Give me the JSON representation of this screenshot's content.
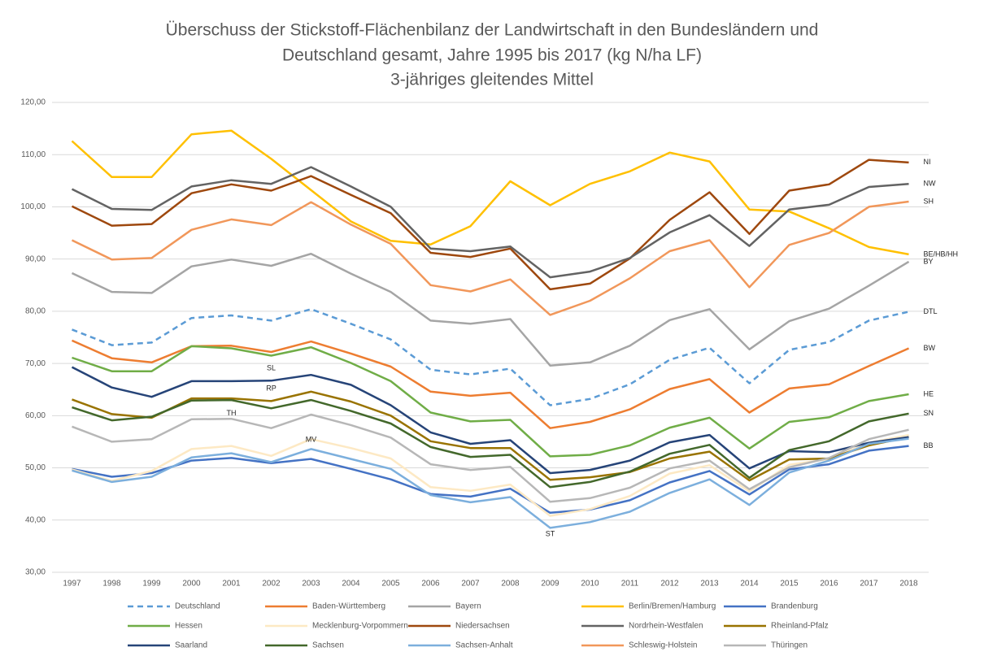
{
  "chart_data": {
    "type": "line",
    "title": [
      "Überschuss der Stickstoff-Flächenbilanz der Landwirtschaft in den Bundesländern und",
      "Deutschland gesamt, Jahre 1995 bis 2017 (kg N/ha LF)",
      "3-jähriges gleitendes Mittel"
    ],
    "categories": [
      "1997",
      "1998",
      "1999",
      "2000",
      "2001",
      "2002",
      "2003",
      "2004",
      "2005",
      "2006",
      "2007",
      "2008",
      "2009",
      "2010",
      "2011",
      "2012",
      "2013",
      "2014",
      "2015",
      "2016",
      "2017",
      "2018"
    ],
    "ylim": [
      30,
      120
    ],
    "yticks": [
      {
        "value": 30,
        "label": "30,00"
      },
      {
        "value": 40,
        "label": "40,00"
      },
      {
        "value": 50,
        "label": "50,00"
      },
      {
        "value": 60,
        "label": "60,00"
      },
      {
        "value": 70,
        "label": "70,00"
      },
      {
        "value": 80,
        "label": "80,00"
      },
      {
        "value": 90,
        "label": "90,00"
      },
      {
        "value": 100,
        "label": "100,00"
      },
      {
        "value": 110,
        "label": "110,00"
      },
      {
        "value": 120,
        "label": "120,00"
      }
    ],
    "grid": true,
    "legend": "bottom",
    "series": [
      {
        "name": "Deutschland",
        "color": "#5b9bd5",
        "dash": true,
        "label": "DTL",
        "values": [
          76.5,
          73.5,
          74,
          78.7,
          79.2,
          78.2,
          80.4,
          77.6,
          74.6,
          68.8,
          67.9,
          69,
          62,
          63.2,
          66,
          70.7,
          73,
          66.2,
          72.6,
          74.1,
          78.2,
          79.9
        ]
      },
      {
        "name": "Baden-Württemberg",
        "color": "#ed7d31",
        "label": "BW",
        "values": [
          74.4,
          71,
          70.2,
          73.3,
          73.4,
          72.2,
          74.2,
          71.9,
          69.4,
          64.6,
          63.8,
          64.4,
          57.6,
          58.8,
          61.2,
          65.1,
          67,
          60.6,
          65.2,
          66,
          69.5,
          72.9
        ]
      },
      {
        "name": "Bayern",
        "color": "#a5a5a5",
        "label": "BY",
        "values": [
          87.3,
          83.7,
          83.5,
          88.6,
          89.9,
          88.7,
          91,
          87.2,
          83.7,
          78.2,
          77.6,
          78.5,
          69.6,
          70.2,
          73.4,
          78.3,
          80.4,
          72.7,
          78.1,
          80.5,
          84.9,
          89.5
        ]
      },
      {
        "name": "Berlin/Bremen/Hamburg",
        "color": "#ffc000",
        "label": "BE/HB/HH",
        "values": [
          112.6,
          105.7,
          105.7,
          113.9,
          114.6,
          109.2,
          103.2,
          97.2,
          93.5,
          92.8,
          96.3,
          104.9,
          100.3,
          104.4,
          106.8,
          110.4,
          108.7,
          99.5,
          99.1,
          95.9,
          92.3,
          90.9
        ]
      },
      {
        "name": "Brandenburg",
        "color": "#4472c4",
        "label": "BB",
        "values": [
          49.8,
          48.3,
          49,
          51.4,
          51.9,
          50.9,
          51.7,
          49.8,
          47.8,
          45,
          44.5,
          46,
          41.4,
          42,
          43.8,
          47.2,
          49.4,
          44.9,
          49.7,
          50.7,
          53.3,
          54.2
        ]
      },
      {
        "name": "Hessen",
        "color": "#70ad47",
        "label": "HE",
        "values": [
          71.1,
          68.5,
          68.5,
          73.3,
          72.9,
          71.5,
          73.1,
          70.1,
          66.6,
          60.6,
          58.9,
          59.2,
          52.2,
          52.5,
          54.3,
          57.7,
          59.6,
          53.7,
          58.8,
          59.7,
          62.8,
          64.1
        ]
      },
      {
        "name": "Mecklenburg-Vorpommern",
        "color": "#fde9c4",
        "values": [
          49.7,
          47.5,
          49.4,
          53.6,
          54.2,
          52.3,
          55.5,
          53.8,
          51.8,
          46.3,
          45.6,
          46.8,
          40.8,
          42.1,
          44.6,
          48.9,
          50.5,
          45.5,
          50.6,
          51.7,
          54.8,
          56.3
        ]
      },
      {
        "name": "Niedersachsen",
        "color": "#9e480e",
        "label": "NI",
        "values": [
          100.1,
          96.4,
          96.7,
          102.6,
          104.3,
          103.1,
          105.9,
          102.3,
          98.8,
          91.2,
          90.4,
          92,
          84.2,
          85.3,
          90.1,
          97.5,
          102.8,
          94.8,
          103.1,
          104.3,
          109,
          108.5
        ]
      },
      {
        "name": "Nordrhein-Westfalen",
        "color": "#636363",
        "label": "NW",
        "values": [
          103.4,
          99.6,
          99.4,
          103.9,
          105.1,
          104.4,
          107.6,
          103.9,
          100,
          92,
          91.5,
          92.4,
          86.5,
          87.6,
          90.2,
          95.1,
          98.4,
          92.5,
          99.5,
          100.4,
          103.8,
          104.4
        ]
      },
      {
        "name": "Rheinland-Pfalz",
        "color": "#997300",
        "values": [
          63.1,
          60.3,
          59.6,
          63.3,
          63.3,
          62.8,
          64.6,
          62.7,
          60,
          55.1,
          53.8,
          53.8,
          47.7,
          48.2,
          49.2,
          51.8,
          53.1,
          47.6,
          51.6,
          51.8,
          54.3,
          55.9
        ]
      },
      {
        "name": "Saarland",
        "color": "#264478",
        "values": [
          69.3,
          65.4,
          63.6,
          66.6,
          66.6,
          66.7,
          67.8,
          65.9,
          62,
          56.8,
          54.6,
          55.3,
          49,
          49.6,
          51.4,
          54.9,
          56.3,
          49.9,
          53.2,
          53,
          54.8,
          55.9
        ]
      },
      {
        "name": "Sachsen",
        "color": "#43682b",
        "label": "SN",
        "values": [
          61.6,
          59.1,
          59.8,
          62.9,
          63,
          61.4,
          63,
          60.9,
          58.5,
          54,
          52.1,
          52.5,
          46.3,
          47.3,
          49.3,
          52.7,
          54.4,
          48.1,
          53.4,
          55.1,
          58.9,
          60.4
        ]
      },
      {
        "name": "Sachsen-Anhalt",
        "color": "#7cafdd",
        "values": [
          49.5,
          47.3,
          48.3,
          52,
          52.8,
          51.1,
          53.6,
          51.7,
          49.8,
          44.8,
          43.4,
          44.4,
          38.5,
          39.6,
          41.6,
          45.2,
          47.8,
          42.9,
          49.1,
          51.4,
          54.6,
          55.6
        ]
      },
      {
        "name": "Schleswig-Holstein",
        "color": "#f1975a",
        "label": "SH",
        "values": [
          93.6,
          89.9,
          90.2,
          95.6,
          97.6,
          96.5,
          100.9,
          96.6,
          92.9,
          85,
          83.8,
          86.1,
          79.3,
          82,
          86.3,
          91.5,
          93.6,
          84.6,
          92.7,
          95,
          100,
          101
        ]
      },
      {
        "name": "Thüringen",
        "color": "#b7b7b7",
        "values": [
          57.9,
          55,
          55.5,
          59.3,
          59.4,
          57.6,
          60.2,
          58.2,
          55.8,
          50.7,
          49.6,
          50.2,
          43.5,
          44.2,
          46.2,
          49.9,
          51.4,
          45.9,
          50.1,
          51.9,
          55.5,
          57.3
        ]
      }
    ],
    "annotations": [
      {
        "text": "SL",
        "x": "2002",
        "y": 69.1
      },
      {
        "text": "RP",
        "x": "2002",
        "y": 65.2
      },
      {
        "text": "TH",
        "x": "2001",
        "y": 60.4
      },
      {
        "text": "MV",
        "x": "2003",
        "y": 55.4
      },
      {
        "text": "ST",
        "x": "2009",
        "y": 37.3
      }
    ]
  }
}
